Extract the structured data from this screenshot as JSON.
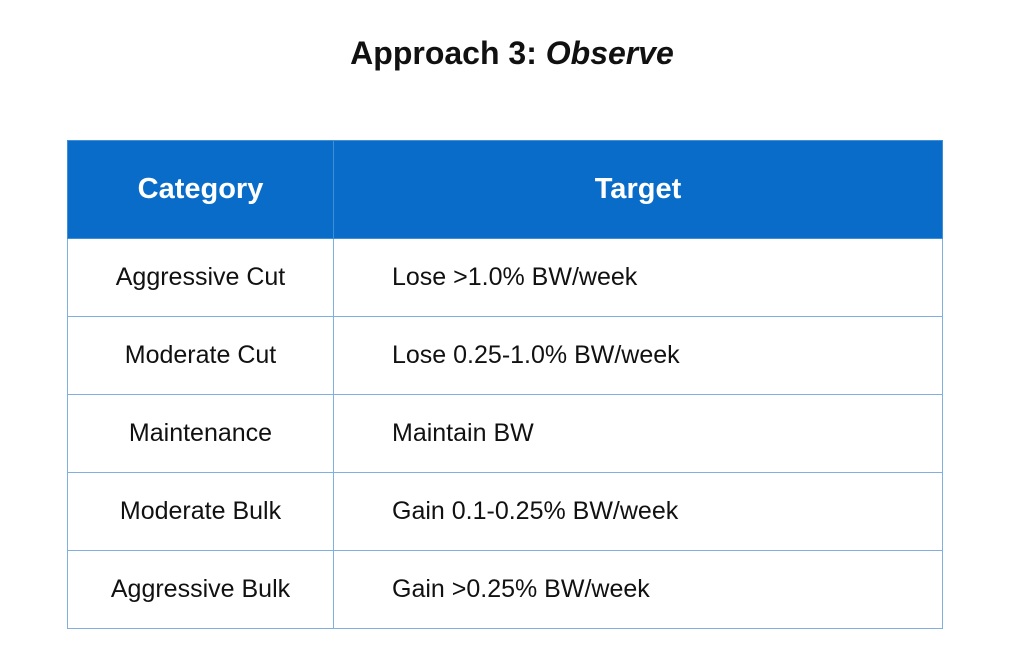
{
  "title": {
    "prefix": "Approach 3: ",
    "emphasis": "Observe"
  },
  "table": {
    "headers": [
      "Category",
      "Target"
    ],
    "rows": [
      {
        "category": "Aggressive Cut",
        "target": "Lose >1.0% BW/week"
      },
      {
        "category": "Moderate Cut",
        "target": "Lose 0.25-1.0% BW/week"
      },
      {
        "category": "Maintenance",
        "target": "Maintain BW"
      },
      {
        "category": "Moderate Bulk",
        "target": "Gain 0.1-0.25% BW/week"
      },
      {
        "category": "Aggressive Bulk",
        "target": "Gain >0.25% BW/week"
      }
    ]
  },
  "colors": {
    "header_bg": "#0a6cc9",
    "header_text": "#ffffff",
    "grid_line": "#7fb0e0"
  }
}
